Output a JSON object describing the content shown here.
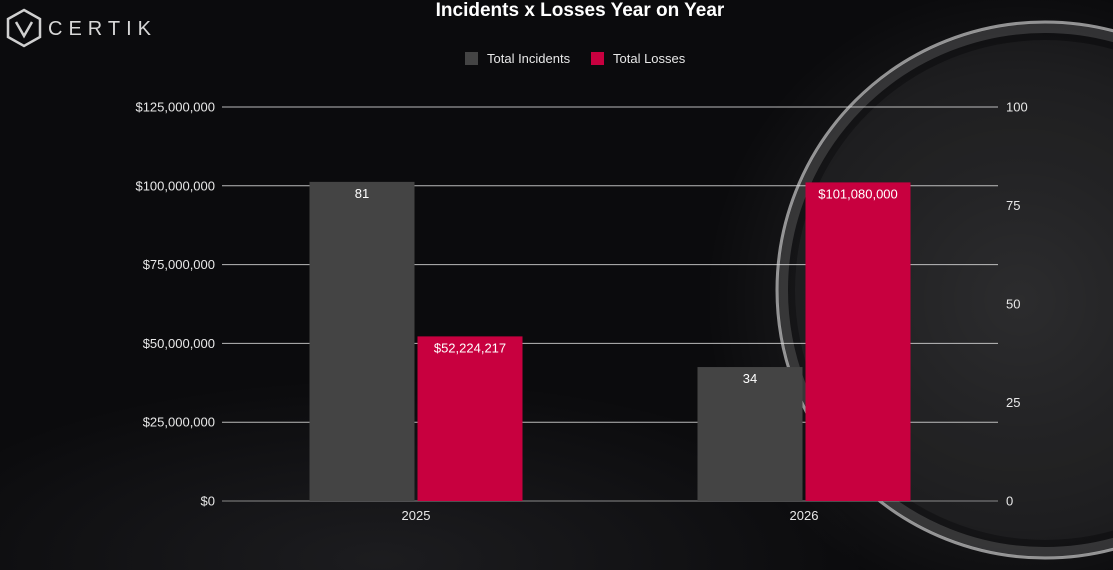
{
  "brand": {
    "name": "CERTIK",
    "icon": "certik-logo-icon"
  },
  "chart_data": {
    "type": "bar",
    "title": "Incidents x Losses Year on Year",
    "categories": [
      "2025",
      "2026"
    ],
    "series": [
      {
        "name": "Total Incidents",
        "axis": "right",
        "color": "#444444",
        "values": [
          81,
          34
        ],
        "labels": [
          "81",
          "34"
        ]
      },
      {
        "name": "Total Losses",
        "axis": "left",
        "color": "#c8003f",
        "values": [
          52224217,
          101080000
        ],
        "labels": [
          "$52,224,217",
          "$101,080,000"
        ]
      }
    ],
    "y_left": {
      "range": [
        0,
        125000000
      ],
      "ticks": [
        0,
        25000000,
        50000000,
        75000000,
        100000000,
        125000000
      ],
      "tick_labels": [
        "$0",
        "$25,000,000",
        "$50,000,000",
        "$75,000,000",
        "$100,000,000",
        "$125,000,000"
      ]
    },
    "y_right": {
      "range": [
        0,
        100
      ],
      "ticks": [
        0,
        25,
        50,
        75,
        100
      ],
      "tick_labels": [
        "0",
        "25",
        "50",
        "75",
        "100"
      ]
    },
    "grid": true,
    "legend_position": "top-center",
    "gridline_color": "#d9d9d9",
    "axis_line_color": "#8a8a8a"
  }
}
